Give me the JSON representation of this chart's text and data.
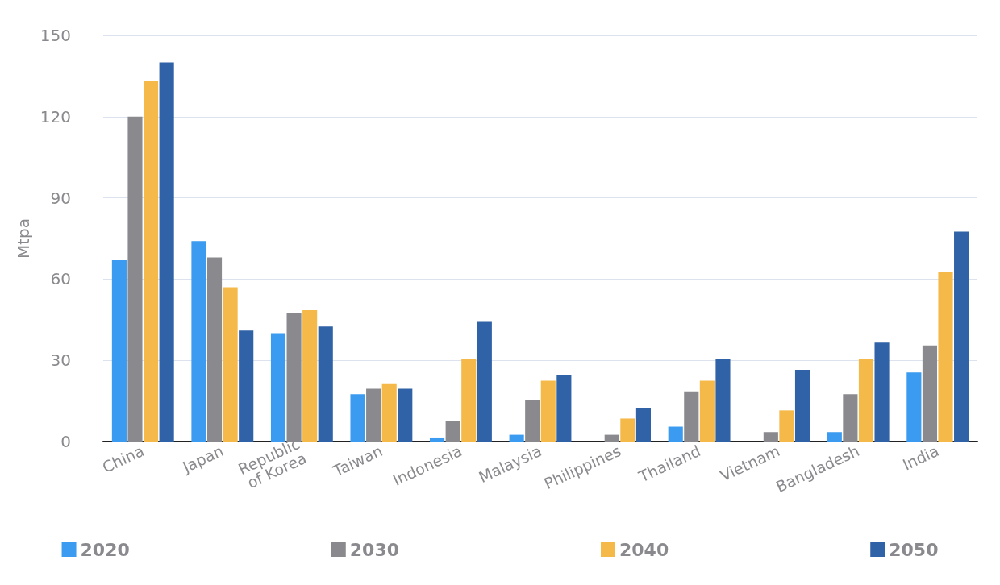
{
  "chart_data": {
    "type": "bar",
    "ylabel": "Mtpa",
    "categories": [
      "China",
      "Japan",
      "Republic\nof Korea",
      "Taiwan",
      "Indonesia",
      "Malaysia",
      "Philippines",
      "Thailand",
      "Vietnam",
      "Bangladesh",
      "India"
    ],
    "series": [
      {
        "name": "2020",
        "color": "#3a9bf0",
        "values": [
          67,
          74,
          40,
          17.5,
          1.5,
          2.5,
          null,
          5.5,
          null,
          3.5,
          25.5
        ]
      },
      {
        "name": "2030",
        "color": "#8a8a8e",
        "values": [
          120,
          68,
          47.5,
          19.5,
          7.5,
          15.5,
          2.5,
          18.5,
          3.5,
          17.5,
          35.5
        ]
      },
      {
        "name": "2040",
        "color": "#f5b94a",
        "values": [
          133,
          57,
          48.5,
          21.5,
          30.5,
          22.5,
          8.5,
          22.5,
          11.5,
          30.5,
          62.5
        ]
      },
      {
        "name": "2050",
        "color": "#2f62a6",
        "values": [
          140,
          41,
          42.5,
          19.5,
          44.5,
          24.5,
          12.5,
          30.5,
          26.5,
          36.5,
          77.5
        ]
      }
    ],
    "ylim": [
      0,
      150
    ],
    "yticks": [
      0,
      30,
      60,
      90,
      120,
      150
    ],
    "grid": "y",
    "legend": "bottom"
  }
}
